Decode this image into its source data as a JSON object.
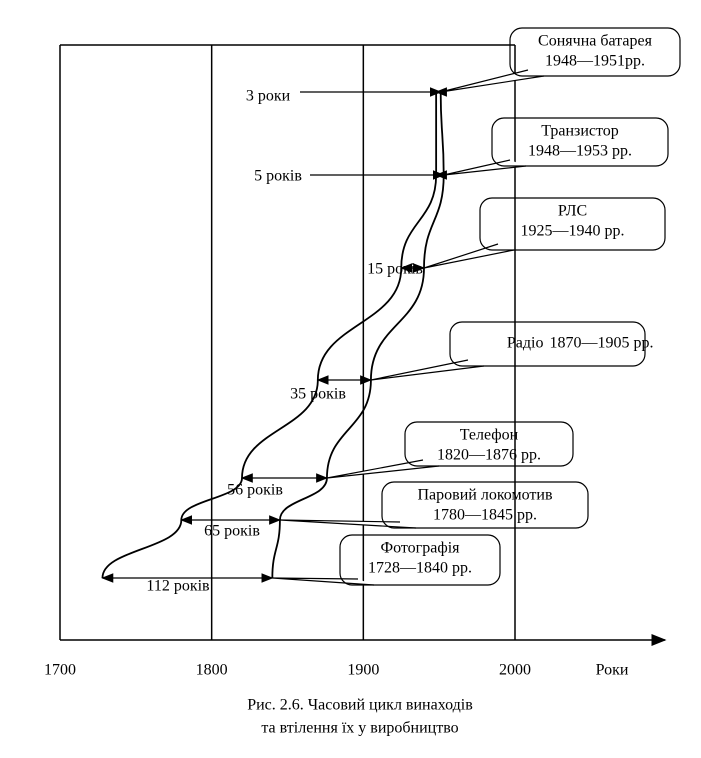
{
  "chart_data": {
    "type": "timeline",
    "xlim": [
      1700,
      2000
    ],
    "xticks": [
      1700,
      1800,
      1900,
      2000
    ],
    "xlabel": "Роки",
    "grid": true,
    "caption": [
      "Рис. 2.6. Часовий цикл винаходів",
      "та втілення їх у виробництво"
    ],
    "items": [
      {
        "name": "Сонячна батарея",
        "period": "1948—1951рр.",
        "start": 1948,
        "end": 1951,
        "duration": "3 роки"
      },
      {
        "name": "Транзистор",
        "period": "1948—1953 рр.",
        "start": 1948,
        "end": 1953,
        "duration": "5 років"
      },
      {
        "name": "РЛС",
        "period": "1925—1940 рр.",
        "start": 1925,
        "end": 1940,
        "duration": "15 років"
      },
      {
        "name": "Радіо",
        "period": "1870—1905 рр.",
        "start": 1870,
        "end": 1905,
        "duration": "35 років"
      },
      {
        "name": "Телефон",
        "period": "1820—1876 рр.",
        "start": 1820,
        "end": 1876,
        "duration": "56 років"
      },
      {
        "name": "Паровий локомотив",
        "period": "1780—1845 рр.",
        "start": 1780,
        "end": 1845,
        "duration": "65 років"
      },
      {
        "name": "Фотографія",
        "period": "1728—1840 рр.",
        "start": 1728,
        "end": 1840,
        "duration": "112 років"
      }
    ]
  }
}
